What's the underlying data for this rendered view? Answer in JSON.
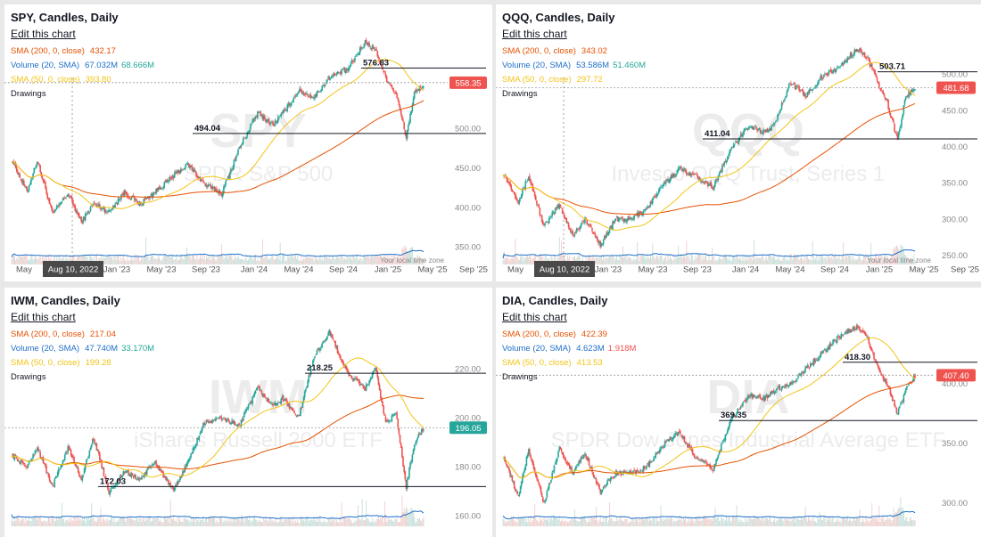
{
  "colors": {
    "up": "#26a69a",
    "down": "#ef5350",
    "sma200": "#e65100",
    "sma50": "#f2c417",
    "volume_ma": "#1e6fc8",
    "vol_ma_value_green": "#26a69a",
    "vol_ma_value_red": "#ef5350",
    "grid_text": "#888888",
    "time_tooltip_bg": "#4a4a4a"
  },
  "time_axis": {
    "labels": [
      "May",
      "Aug 10, 2022",
      "Jan '23",
      "May '23",
      "Sep '23",
      "Jan '24",
      "May '24",
      "Sep '24",
      "Jan '25",
      "May '25",
      "Sep '25"
    ],
    "note": "Your local time zone"
  },
  "panels": [
    {
      "symbol": "SPY",
      "title": "SPY, Candles, Daily",
      "edit_label": "Edit this chart",
      "watermark_symbol": "SPY",
      "watermark_name": "SPDR S&P 500",
      "indicators": [
        {
          "label": "SMA (200, 0, close)",
          "values": [
            "432.17"
          ],
          "value_colors": [
            "#e65100"
          ],
          "color": "#e65100"
        },
        {
          "label": "Volume (20, SMA)",
          "values": [
            "67.032M",
            "68.666M"
          ],
          "value_colors": [
            "#1e6fc8",
            "#26a69a"
          ],
          "color": "#1e6fc8"
        },
        {
          "label": "SMA (50, 0, close)",
          "values": [
            "393.80"
          ],
          "value_colors": [
            "#f2c417"
          ],
          "color": "#f2c417"
        }
      ],
      "drawings_label": "Drawings",
      "price_ticks": [
        "500.00",
        "450.00",
        "400.00",
        "350.00"
      ],
      "last_price": "558.35",
      "last_color": "#ef5350",
      "hline_labels": [
        "576.83",
        "494.04"
      ]
    },
    {
      "symbol": "QQQ",
      "title": "QQQ, Candles, Daily",
      "edit_label": "Edit this chart",
      "watermark_symbol": "QQQ",
      "watermark_name": "Invesco QQQ Trust, Series 1",
      "indicators": [
        {
          "label": "SMA (200, 0, close)",
          "values": [
            "343.02"
          ],
          "value_colors": [
            "#e65100"
          ],
          "color": "#e65100"
        },
        {
          "label": "Volume (20, SMA)",
          "values": [
            "53.586M",
            "51.460M"
          ],
          "value_colors": [
            "#1e6fc8",
            "#26a69a"
          ],
          "color": "#1e6fc8"
        },
        {
          "label": "SMA (50, 0, close)",
          "values": [
            "297.72"
          ],
          "value_colors": [
            "#f2c417"
          ],
          "color": "#f2c417"
        }
      ],
      "drawings_label": "Drawings",
      "price_ticks": [
        "500.00",
        "450.00",
        "400.00",
        "350.00",
        "300.00",
        "250.00"
      ],
      "last_price": "481.68",
      "last_color": "#ef5350",
      "hline_labels": [
        "503.71",
        "411.04"
      ]
    },
    {
      "symbol": "IWM",
      "title": "IWM, Candles, Daily",
      "edit_label": "Edit this chart",
      "watermark_symbol": "IWM",
      "watermark_name": "iShares Russell 2000 ETF",
      "indicators": [
        {
          "label": "SMA (200, 0, close)",
          "values": [
            "217.04"
          ],
          "value_colors": [
            "#e65100"
          ],
          "color": "#e65100"
        },
        {
          "label": "Volume (20, SMA)",
          "values": [
            "47.740M",
            "33.170M"
          ],
          "value_colors": [
            "#1e6fc8",
            "#26a69a"
          ],
          "color": "#1e6fc8"
        },
        {
          "label": "SMA (50, 0, close)",
          "values": [
            "199.28"
          ],
          "value_colors": [
            "#f2c417"
          ],
          "color": "#f2c417"
        }
      ],
      "drawings_label": "Drawings",
      "price_ticks": [
        "220.00",
        "200.00",
        "180.00",
        "160.00"
      ],
      "last_price": "196.05",
      "last_color": "#26a69a",
      "hline_labels": [
        "218.25",
        "172.03"
      ]
    },
    {
      "symbol": "DIA",
      "title": "DIA, Candles, Daily",
      "edit_label": "Edit this chart",
      "watermark_symbol": "DIA",
      "watermark_name": "SPDR Dow Jones Industrial Average ETF",
      "indicators": [
        {
          "label": "SMA (200, 0, close)",
          "values": [
            "422.39"
          ],
          "value_colors": [
            "#e65100"
          ],
          "color": "#e65100"
        },
        {
          "label": "Volume (20, SMA)",
          "values": [
            "4.623M",
            "1.918M"
          ],
          "value_colors": [
            "#1e6fc8",
            "#ef5350"
          ],
          "color": "#1e6fc8"
        },
        {
          "label": "SMA (50, 0, close)",
          "values": [
            "413.53"
          ],
          "value_colors": [
            "#f2c417"
          ],
          "color": "#f2c417"
        }
      ],
      "drawings_label": "Drawings",
      "price_ticks": [
        "400.00",
        "350.00",
        "300.00"
      ],
      "last_price": "407.40",
      "last_color": "#ef5350",
      "hline_labels": [
        "418.30",
        "369.35"
      ]
    }
  ],
  "chart_data": [
    {
      "type": "candlestick",
      "title": "SPY, Candles, Daily",
      "ylim": [
        335,
        610
      ],
      "y_ticks": [
        500,
        450,
        400,
        350
      ],
      "last_price": 558.35,
      "hlines": [
        576.83,
        494.04
      ],
      "anchors": [
        [
          0,
          462
        ],
        [
          15,
          420
        ],
        [
          25,
          460
        ],
        [
          40,
          392
        ],
        [
          55,
          418
        ],
        [
          68,
          382
        ],
        [
          80,
          405
        ],
        [
          95,
          395
        ],
        [
          110,
          420
        ],
        [
          125,
          405
        ],
        [
          140,
          420
        ],
        [
          158,
          440
        ],
        [
          172,
          455
        ],
        [
          188,
          430
        ],
        [
          205,
          418
        ],
        [
          222,
          475
        ],
        [
          240,
          520
        ],
        [
          255,
          505
        ],
        [
          265,
          520
        ],
        [
          280,
          548
        ],
        [
          295,
          540
        ],
        [
          310,
          565
        ],
        [
          328,
          575
        ],
        [
          345,
          610
        ],
        [
          355,
          600
        ],
        [
          365,
          565
        ],
        [
          375,
          545
        ],
        [
          385,
          490
        ],
        [
          393,
          545
        ],
        [
          402,
          555
        ]
      ]
    },
    {
      "type": "candlestick",
      "title": "QQQ, Candles, Daily",
      "ylim": [
        245,
        545
      ],
      "y_ticks": [
        500,
        450,
        400,
        350,
        300,
        250
      ],
      "last_price": 481.68,
      "hlines": [
        503.71,
        411.04
      ],
      "anchors": [
        [
          0,
          365
        ],
        [
          15,
          325
        ],
        [
          25,
          360
        ],
        [
          40,
          290
        ],
        [
          55,
          320
        ],
        [
          68,
          278
        ],
        [
          80,
          300
        ],
        [
          95,
          265
        ],
        [
          110,
          300
        ],
        [
          125,
          300
        ],
        [
          140,
          315
        ],
        [
          158,
          350
        ],
        [
          172,
          370
        ],
        [
          188,
          360
        ],
        [
          205,
          345
        ],
        [
          222,
          395
        ],
        [
          240,
          430
        ],
        [
          255,
          420
        ],
        [
          265,
          430
        ],
        [
          280,
          490
        ],
        [
          295,
          470
        ],
        [
          310,
          495
        ],
        [
          328,
          510
        ],
        [
          345,
          535
        ],
        [
          355,
          525
        ],
        [
          365,
          490
        ],
        [
          375,
          460
        ],
        [
          385,
          410
        ],
        [
          393,
          470
        ],
        [
          402,
          482
        ]
      ]
    },
    {
      "type": "candlestick",
      "title": "IWM, Candles, Daily",
      "ylim": [
        158,
        243
      ],
      "y_ticks": [
        220,
        200,
        180,
        160
      ],
      "last_price": 196.05,
      "hlines": [
        218.25,
        172.03
      ],
      "anchors": [
        [
          0,
          185
        ],
        [
          15,
          180
        ],
        [
          25,
          188
        ],
        [
          40,
          172
        ],
        [
          55,
          188
        ],
        [
          68,
          175
        ],
        [
          80,
          192
        ],
        [
          95,
          170
        ],
        [
          110,
          178
        ],
        [
          125,
          175
        ],
        [
          140,
          182
        ],
        [
          158,
          170
        ],
        [
          172,
          182
        ],
        [
          188,
          198
        ],
        [
          205,
          200
        ],
        [
          222,
          197
        ],
        [
          240,
          212
        ],
        [
          255,
          205
        ],
        [
          265,
          208
        ],
        [
          280,
          200
        ],
        [
          295,
          225
        ],
        [
          310,
          235
        ],
        [
          328,
          218
        ],
        [
          345,
          212
        ],
        [
          355,
          220
        ],
        [
          365,
          198
        ],
        [
          375,
          202
        ],
        [
          385,
          172
        ],
        [
          393,
          190
        ],
        [
          402,
          196
        ]
      ]
    },
    {
      "type": "candlestick",
      "title": "DIA, Candles, Daily",
      "ylim": [
        285,
        460
      ],
      "y_ticks": [
        400,
        350,
        300
      ],
      "last_price": 407.4,
      "hlines": [
        418.3,
        369.35
      ],
      "anchors": [
        [
          0,
          340
        ],
        [
          15,
          305
        ],
        [
          25,
          345
        ],
        [
          40,
          300
        ],
        [
          55,
          345
        ],
        [
          68,
          325
        ],
        [
          80,
          342
        ],
        [
          95,
          310
        ],
        [
          110,
          325
        ],
        [
          125,
          325
        ],
        [
          140,
          330
        ],
        [
          158,
          350
        ],
        [
          172,
          360
        ],
        [
          188,
          338
        ],
        [
          205,
          328
        ],
        [
          222,
          370
        ],
        [
          240,
          390
        ],
        [
          255,
          388
        ],
        [
          265,
          395
        ],
        [
          280,
          400
        ],
        [
          295,
          412
        ],
        [
          310,
          425
        ],
        [
          328,
          440
        ],
        [
          345,
          448
        ],
        [
          355,
          440
        ],
        [
          365,
          415
        ],
        [
          375,
          400
        ],
        [
          385,
          375
        ],
        [
          393,
          395
        ],
        [
          402,
          407
        ]
      ]
    }
  ]
}
